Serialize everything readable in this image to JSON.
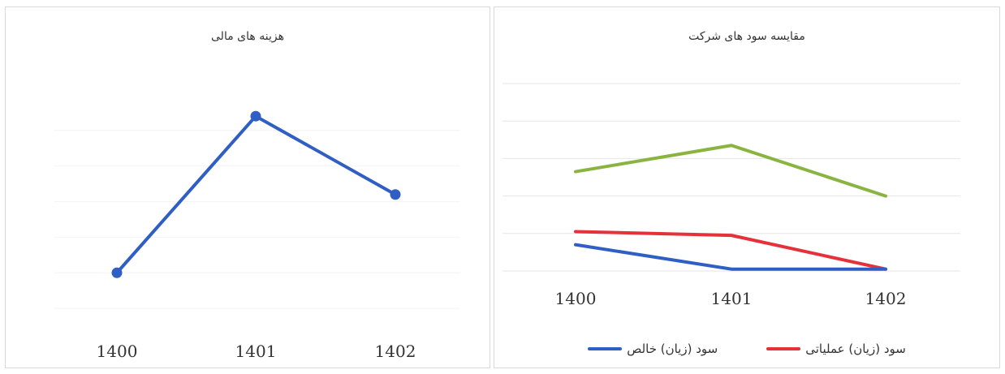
{
  "chart_data": [
    {
      "type": "line",
      "title": "هزینه های مالی",
      "categories": [
        "1400",
        "1401",
        "1402"
      ],
      "series": [
        {
          "values": [
            20,
            64,
            42
          ],
          "color": "#2f5fc4"
        }
      ],
      "markers": true,
      "ylim": [
        0,
        80
      ],
      "grid": true
    },
    {
      "type": "line",
      "title": "مقایسه سود های شرکت",
      "categories": [
        "1400",
        "1401",
        "1402"
      ],
      "series": [
        {
          "values": [
            53,
            67,
            40
          ],
          "color": "#8ab440"
        },
        {
          "name": "سود (زیان) عملیاتی",
          "values": [
            21,
            19,
            1
          ],
          "color": "#e5323a"
        },
        {
          "name": "سود (زیان) خالص",
          "values": [
            14,
            1,
            1
          ],
          "color": "#2f5fc4"
        }
      ],
      "markers": false,
      "ylim": [
        0,
        100
      ],
      "grid": true,
      "legend": "bottom"
    }
  ]
}
